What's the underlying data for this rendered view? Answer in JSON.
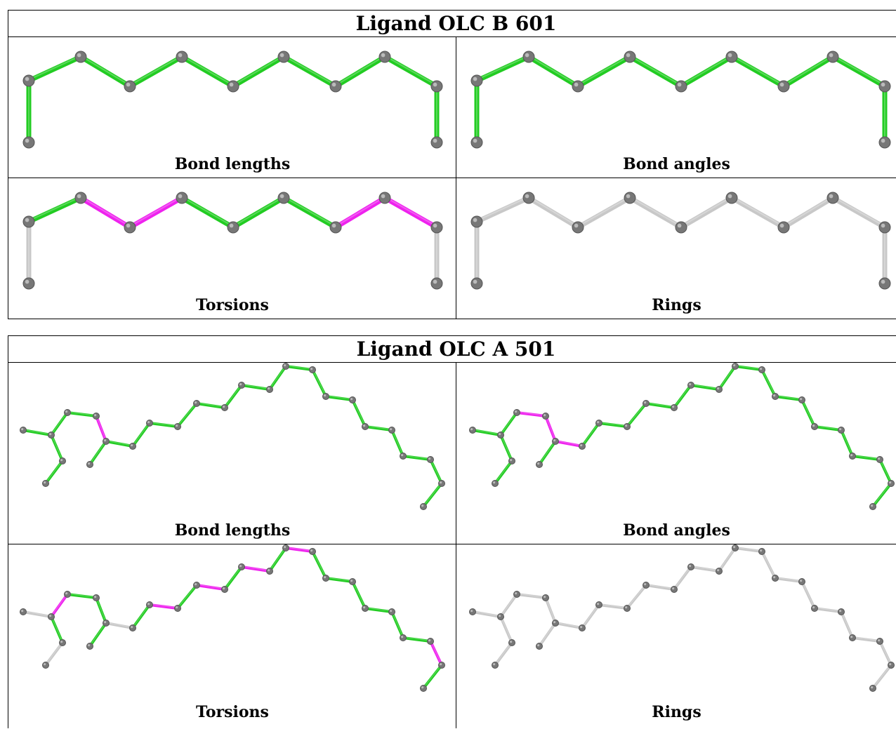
{
  "panels": [
    {
      "title": "Ligand OLC B 601",
      "captions": [
        "Bond lengths",
        "Bond angles",
        "Torsions",
        "Rings"
      ]
    },
    {
      "title": "Ligand OLC A 501",
      "captions": [
        "Bond lengths",
        "Bond angles",
        "Torsions",
        "Rings"
      ]
    }
  ],
  "colors": {
    "ok": "#22cc22",
    "outlier": "#ee22ee",
    "unassessed": "#c8c8c8",
    "atom": "#777777"
  },
  "molecules": {
    "B601": {
      "bond_status": {
        "bond-lengths": [
          "ok",
          "ok",
          "ok",
          "ok",
          "ok",
          "ok",
          "ok",
          "ok",
          "ok",
          "ok"
        ],
        "bond-angles": [
          "ok",
          "ok",
          "ok",
          "ok",
          "ok",
          "ok",
          "ok",
          "ok",
          "ok",
          "ok"
        ],
        "torsions": [
          "unassessed",
          "ok",
          "outlier",
          "outlier",
          "ok",
          "ok",
          "ok",
          "outlier",
          "outlier",
          "unassessed"
        ],
        "rings": [
          "unassessed",
          "unassessed",
          "unassessed",
          "unassessed",
          "unassessed",
          "unassessed",
          "unassessed",
          "unassessed",
          "unassessed",
          "unassessed"
        ]
      }
    },
    "A501": {
      "bond_status": {
        "bond-lengths": [
          "ok",
          "ok",
          "ok",
          "ok",
          "ok",
          "outlier",
          "ok",
          "ok",
          "ok",
          "ok",
          "ok",
          "ok",
          "ok",
          "ok",
          "ok",
          "ok",
          "ok",
          "ok",
          "ok",
          "ok",
          "ok",
          "ok",
          "ok",
          "ok",
          "ok",
          "ok"
        ],
        "bond-angles": [
          "ok",
          "ok",
          "ok",
          "ok",
          "outlier",
          "outlier",
          "ok",
          "outlier",
          "ok",
          "ok",
          "ok",
          "ok",
          "ok",
          "ok",
          "ok",
          "ok",
          "ok",
          "ok",
          "ok",
          "ok",
          "ok",
          "ok",
          "ok",
          "ok",
          "ok",
          "ok"
        ],
        "torsions": [
          "unassessed",
          "ok",
          "unassessed",
          "outlier",
          "ok",
          "ok",
          "ok",
          "unassessed",
          "ok",
          "outlier",
          "ok",
          "outlier",
          "ok",
          "outlier",
          "ok",
          "outlier",
          "ok",
          "ok",
          "ok",
          "ok",
          "ok",
          "ok",
          "outlier",
          "ok",
          "outlier",
          "ok"
        ],
        "rings": [
          "unassessed",
          "unassessed",
          "unassessed",
          "unassessed",
          "unassessed",
          "unassessed",
          "unassessed",
          "unassessed",
          "unassessed",
          "unassessed",
          "unassessed",
          "unassessed",
          "unassessed",
          "unassessed",
          "unassessed",
          "unassessed",
          "unassessed",
          "unassessed",
          "unassessed",
          "unassessed",
          "unassessed",
          "unassessed",
          "unassessed",
          "unassessed",
          "unassessed",
          "unassessed"
        ]
      }
    }
  }
}
